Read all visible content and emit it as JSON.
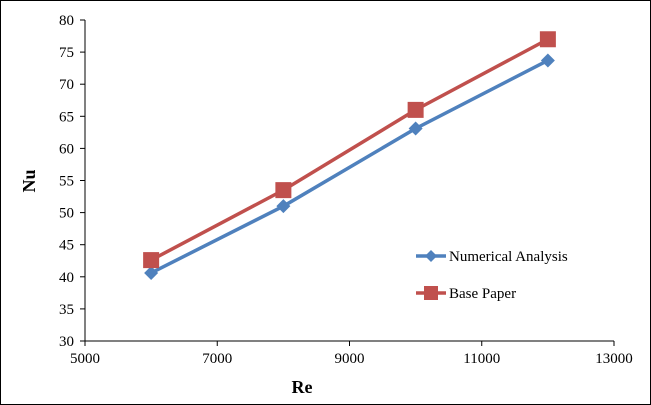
{
  "chart_data": {
    "type": "line",
    "title": "",
    "xlabel": "Re",
    "ylabel": "Nu",
    "xlim": [
      5000,
      13000
    ],
    "ylim": [
      30,
      80
    ],
    "x_ticks": [
      5000,
      7000,
      9000,
      11000,
      13000
    ],
    "y_ticks": [
      30,
      35,
      40,
      45,
      50,
      55,
      60,
      65,
      70,
      75,
      80
    ],
    "grid": false,
    "legend_position": "right",
    "x": [
      6000,
      8000,
      10000,
      12000
    ],
    "series": [
      {
        "name": "Numerical Analysis",
        "values": [
          40.6,
          51.0,
          63.1,
          73.7
        ],
        "color": "#4F81BD",
        "marker": "diamond"
      },
      {
        "name": "Base Paper",
        "values": [
          42.6,
          53.5,
          66.0,
          77.0
        ],
        "color": "#C0504D",
        "marker": "square"
      }
    ]
  }
}
